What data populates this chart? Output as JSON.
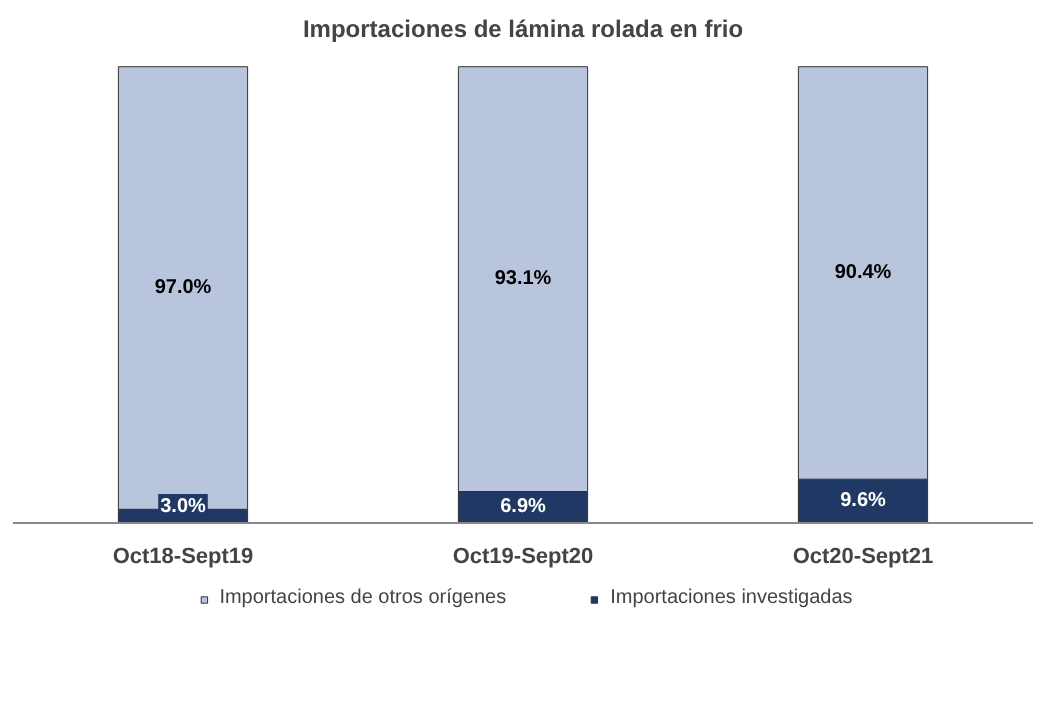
{
  "chart_data": {
    "type": "bar",
    "title": "Importaciones de lámina rolada en frio",
    "categories": [
      "Oct18-Sept19",
      "Oct19-Sept20",
      "Oct20-Sept21"
    ],
    "stacked": true,
    "legend": "bottom",
    "grid": false,
    "series": [
      {
        "name": "Importaciones investigadas",
        "color": "#1f3864",
        "values": [
          3.0,
          6.9,
          9.6
        ],
        "value_labels": [
          "3.0%",
          "6.9%",
          "9.6%"
        ]
      },
      {
        "name": "Importaciones de otros orígenes",
        "color": "#b9c5dd",
        "values": [
          97.0,
          93.1,
          90.4
        ],
        "value_labels": [
          "97.0%",
          "93.1%",
          "90.4%"
        ]
      }
    ]
  }
}
